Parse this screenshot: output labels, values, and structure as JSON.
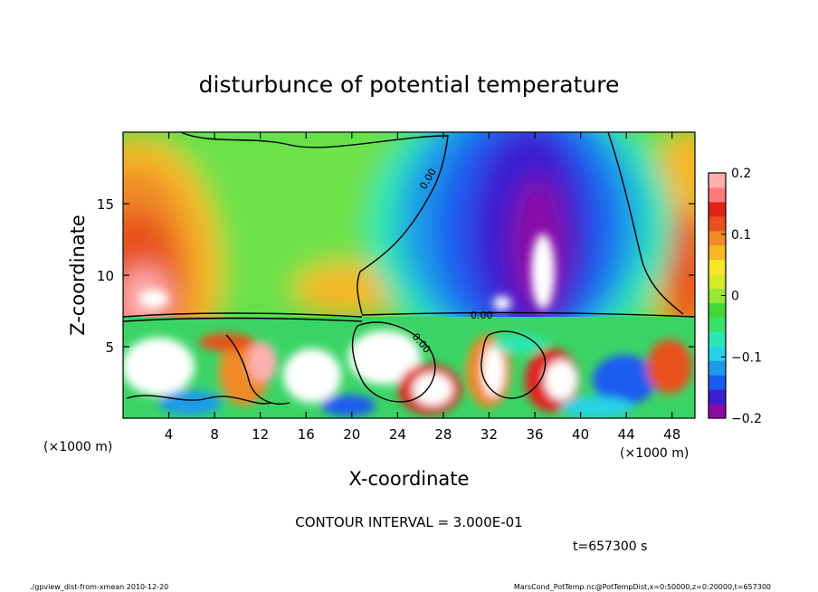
{
  "chart_data": {
    "type": "heatmap",
    "title": "disturbunce of potential temperature",
    "xlabel": "X-coordinate",
    "ylabel": "Z-coordinate",
    "x_unit_left": "(×1000 m)",
    "x_unit_right": "(×1000 m)",
    "xlim": [
      0,
      50
    ],
    "ylim": [
      0,
      20
    ],
    "x_ticks": [
      "4",
      "8",
      "12",
      "16",
      "20",
      "24",
      "28",
      "32",
      "36",
      "40",
      "44",
      "48"
    ],
    "y_ticks": [
      "5",
      "10",
      "15"
    ],
    "x_tick_values": [
      4,
      8,
      12,
      16,
      20,
      24,
      28,
      32,
      36,
      40,
      44,
      48
    ],
    "y_tick_values": [
      5,
      10,
      15
    ],
    "colorbar": {
      "range": [
        -0.2,
        0.2
      ],
      "tick_labels": [
        "0.2",
        "0.1",
        "0",
        "−0.1",
        "−0.2"
      ],
      "tick_values": [
        0.2,
        0.1,
        0,
        -0.1,
        -0.2
      ],
      "colors": [
        "#8b0aa5",
        "#3a1fd0",
        "#1a5cf0",
        "#1e9be8",
        "#28d2e6",
        "#2ee6b4",
        "#39e06a",
        "#43d839",
        "#9ae639",
        "#d6ea2c",
        "#f7e62a",
        "#f5b827",
        "#f08a26",
        "#e8511f",
        "#e0231c",
        "#ff7a7a",
        "#ffb0b0"
      ]
    },
    "contour_labels": [
      "0.00",
      "0.00",
      "0.00"
    ],
    "contour_interval_text": "CONTOUR INTERVAL = 3.000E-01",
    "time_text": "t=657300 s"
  },
  "footer": {
    "left": "./gpview_dist-from-xmean  2010-12-20",
    "right": "MarsCond_PotTemp.nc@PotTempDist,x=0:50000,z=0:20000,t=657300"
  }
}
